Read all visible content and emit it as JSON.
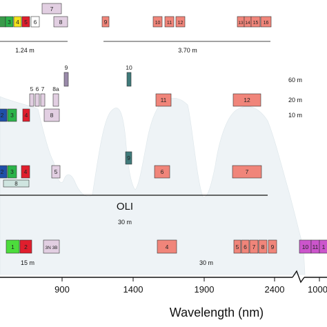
{
  "axis": {
    "title": "Wavelength (nm)",
    "ticks": [
      "900",
      "1400",
      "1900",
      "2400",
      "1000"
    ]
  },
  "sensor": {
    "name": "OLI",
    "resolution": "30 m"
  },
  "resolutions": {
    "top_left": "1.24 m",
    "top_right": "3.70 m",
    "r60": "60 m",
    "r20": "20 m",
    "r10": "10 m",
    "bottom_15": "15 m",
    "bottom_30": "30 m"
  },
  "rows": [
    {
      "id": "row1",
      "bands": [
        {
          "label": "",
          "color": "#3a9a4a"
        },
        {
          "label": "3",
          "color": "#2bb34a"
        },
        {
          "label": "4",
          "color": "#f2e11c"
        },
        {
          "label": "5",
          "color": "#e01e2d"
        },
        {
          "label": "6",
          "color": "#ffffff"
        },
        {
          "label": "7",
          "color": "#e2cfe2"
        },
        {
          "label": "8",
          "color": "#e2cfe2"
        },
        {
          "label": "9",
          "color": "#f0857a"
        },
        {
          "label": "10",
          "color": "#f0857a"
        },
        {
          "label": "11",
          "color": "#f0857a"
        },
        {
          "label": "12",
          "color": "#f0857a"
        },
        {
          "label": "13",
          "color": "#f0857a"
        },
        {
          "label": "14",
          "color": "#f0857a"
        },
        {
          "label": "15",
          "color": "#f0857a"
        },
        {
          "label": "16",
          "color": "#f0857a"
        }
      ]
    },
    {
      "id": "row2",
      "bands": [
        {
          "label": "9",
          "color": "#9a8aaa"
        },
        {
          "label": "10",
          "color": "#3f7a7a"
        },
        {
          "label": "5",
          "color": "#e2cfe2"
        },
        {
          "label": "6",
          "color": "#e2cfe2"
        },
        {
          "label": "7",
          "color": "#e2cfe2"
        },
        {
          "label": "8a",
          "color": "#e2cfe2"
        },
        {
          "label": "11",
          "color": "#f0857a"
        },
        {
          "label": "12",
          "color": "#f0857a"
        },
        {
          "label": "2",
          "color": "#1f4fa8"
        },
        {
          "label": "3",
          "color": "#2bb34a"
        },
        {
          "label": "4",
          "color": "#e01e2d"
        },
        {
          "label": "8",
          "color": "#e2cfe2"
        }
      ]
    },
    {
      "id": "row3",
      "bands": [
        {
          "label": "9",
          "color": "#3f7a7a"
        },
        {
          "label": "2",
          "color": "#1f4fa8"
        },
        {
          "label": "3",
          "color": "#2bb34a"
        },
        {
          "label": "4",
          "color": "#e01e2d"
        },
        {
          "label": "5",
          "color": "#e2cfe2"
        },
        {
          "label": "6",
          "color": "#f0857a"
        },
        {
          "label": "7",
          "color": "#f0857a"
        },
        {
          "label": "8",
          "color": "#cfe5e0"
        }
      ]
    },
    {
      "id": "row4",
      "bands": [
        {
          "label": "1",
          "color": "#4cdc3c"
        },
        {
          "label": "2",
          "color": "#e01e2d"
        },
        {
          "label": "3N 3B",
          "color": "#e2cfe2"
        },
        {
          "label": "4",
          "color": "#f0857a"
        },
        {
          "label": "5",
          "color": "#f0857a"
        },
        {
          "label": "6",
          "color": "#f0857a"
        },
        {
          "label": "7",
          "color": "#f0857a"
        },
        {
          "label": "8",
          "color": "#f0857a"
        },
        {
          "label": "9",
          "color": "#f0857a"
        },
        {
          "label": "10",
          "color": "#cc55cc"
        },
        {
          "label": "11",
          "color": "#cc55cc"
        },
        {
          "label": "1",
          "color": "#cc55cc"
        }
      ]
    }
  ]
}
